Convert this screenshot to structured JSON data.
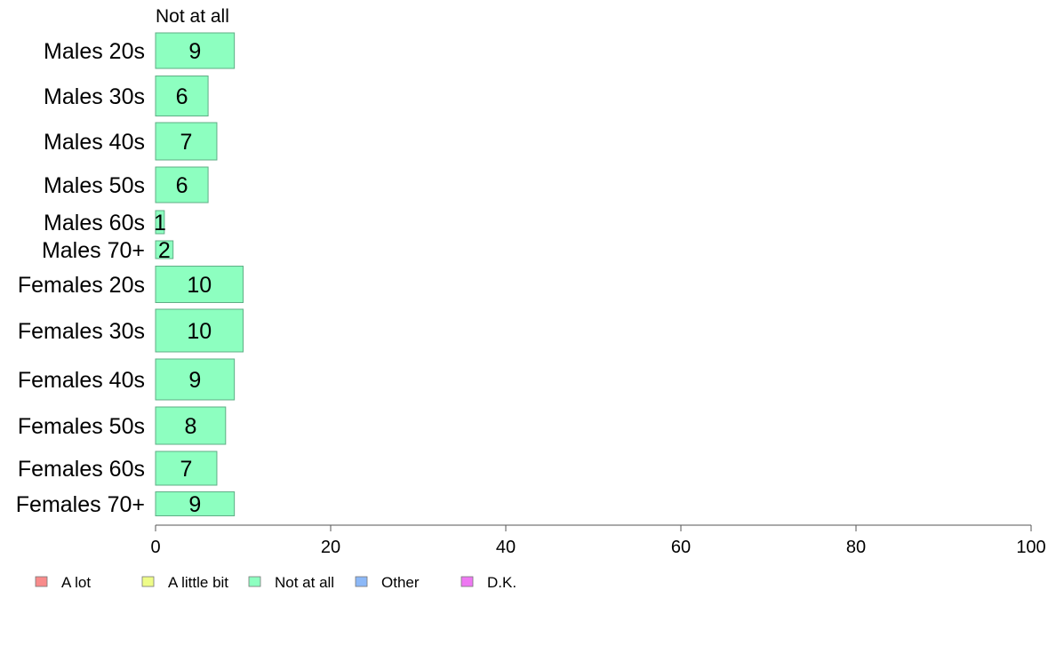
{
  "chart_data": {
    "type": "bar",
    "orientation": "horizontal",
    "column_header": "Not at all",
    "categories": [
      "Males 20s",
      "Males 30s",
      "Males 40s",
      "Males 50s",
      "Males 60s",
      "Males 70+",
      "Females 20s",
      "Females 30s",
      "Females 40s",
      "Females 50s",
      "Females 60s",
      "Females 70+"
    ],
    "series": [
      {
        "name": "Not at all",
        "color": "#8dffc0",
        "values": [
          9,
          6,
          7,
          6,
          1,
          2,
          10,
          10,
          9,
          8,
          7,
          9
        ]
      }
    ],
    "xlim": [
      0,
      100
    ],
    "xticks": [
      0,
      20,
      40,
      60,
      80,
      100
    ],
    "grid": false,
    "legend_position": "bottom",
    "legend": [
      {
        "label": "A lot",
        "color": "#f88b8b"
      },
      {
        "label": "A little bit",
        "color": "#eefc88"
      },
      {
        "label": "Not at all",
        "color": "#8dffc0"
      },
      {
        "label": "Other",
        "color": "#8cb8f7"
      },
      {
        "label": "D.K.",
        "color": "#ee78f2"
      }
    ]
  }
}
